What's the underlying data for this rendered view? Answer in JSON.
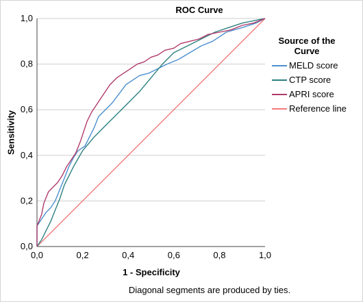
{
  "chart_data": {
    "type": "line",
    "title": "ROC Curve",
    "xlabel": "1 - Specificity",
    "ylabel": "Sensitivity",
    "footnote": "Diagonal segments are produced by ties.",
    "xlim": [
      0,
      1
    ],
    "ylim": [
      0,
      1
    ],
    "xticks": [
      "0,0",
      "0,2",
      "0,4",
      "0,6",
      "0,8",
      "1,0"
    ],
    "yticks": [
      "0,0",
      "0,2",
      "0,4",
      "0,6",
      "0,8",
      "1,0"
    ],
    "grid": "horizontal",
    "legend": {
      "title": "Source of the Curve",
      "position": "right"
    },
    "series": [
      {
        "name": "MELD score",
        "color": "#4a8fd0",
        "points": [
          [
            0,
            0
          ],
          [
            0,
            0.09
          ],
          [
            0.02,
            0.12
          ],
          [
            0.04,
            0.15
          ],
          [
            0.06,
            0.17
          ],
          [
            0.08,
            0.2
          ],
          [
            0.1,
            0.25
          ],
          [
            0.12,
            0.3
          ],
          [
            0.14,
            0.35
          ],
          [
            0.16,
            0.39
          ],
          [
            0.18,
            0.42
          ],
          [
            0.21,
            0.44
          ],
          [
            0.23,
            0.48
          ],
          [
            0.25,
            0.52
          ],
          [
            0.27,
            0.57
          ],
          [
            0.3,
            0.6
          ],
          [
            0.33,
            0.63
          ],
          [
            0.36,
            0.67
          ],
          [
            0.39,
            0.71
          ],
          [
            0.42,
            0.73
          ],
          [
            0.45,
            0.75
          ],
          [
            0.49,
            0.76
          ],
          [
            0.53,
            0.78
          ],
          [
            0.57,
            0.8
          ],
          [
            0.62,
            0.82
          ],
          [
            0.67,
            0.85
          ],
          [
            0.72,
            0.88
          ],
          [
            0.77,
            0.9
          ],
          [
            0.83,
            0.94
          ],
          [
            0.9,
            0.96
          ],
          [
            0.96,
            0.98
          ],
          [
            1,
            1
          ]
        ]
      },
      {
        "name": "CTP score",
        "color": "#2e7f80",
        "points": [
          [
            0,
            0
          ],
          [
            0.02,
            0.03
          ],
          [
            0.04,
            0.07
          ],
          [
            0.06,
            0.11
          ],
          [
            0.08,
            0.16
          ],
          [
            0.1,
            0.21
          ],
          [
            0.12,
            0.27
          ],
          [
            0.14,
            0.31
          ],
          [
            0.16,
            0.35
          ],
          [
            0.2,
            0.42
          ],
          [
            0.25,
            0.48
          ],
          [
            0.3,
            0.53
          ],
          [
            0.35,
            0.58
          ],
          [
            0.4,
            0.63
          ],
          [
            0.45,
            0.68
          ],
          [
            0.5,
            0.74
          ],
          [
            0.55,
            0.8
          ],
          [
            0.6,
            0.85
          ],
          [
            0.66,
            0.88
          ],
          [
            0.72,
            0.91
          ],
          [
            0.78,
            0.94
          ],
          [
            0.84,
            0.96
          ],
          [
            0.9,
            0.98
          ],
          [
            0.95,
            0.99
          ],
          [
            1,
            1
          ]
        ]
      },
      {
        "name": "APRI score",
        "color": "#b03a6a",
        "points": [
          [
            0,
            0
          ],
          [
            0,
            0.09
          ],
          [
            0.02,
            0.14
          ],
          [
            0.03,
            0.19
          ],
          [
            0.05,
            0.24
          ],
          [
            0.07,
            0.26
          ],
          [
            0.09,
            0.28
          ],
          [
            0.11,
            0.31
          ],
          [
            0.13,
            0.35
          ],
          [
            0.15,
            0.38
          ],
          [
            0.17,
            0.41
          ],
          [
            0.19,
            0.46
          ],
          [
            0.21,
            0.52
          ],
          [
            0.22,
            0.55
          ],
          [
            0.24,
            0.59
          ],
          [
            0.26,
            0.62
          ],
          [
            0.28,
            0.65
          ],
          [
            0.3,
            0.68
          ],
          [
            0.32,
            0.71
          ],
          [
            0.35,
            0.74
          ],
          [
            0.38,
            0.76
          ],
          [
            0.41,
            0.78
          ],
          [
            0.44,
            0.8
          ],
          [
            0.47,
            0.81
          ],
          [
            0.5,
            0.83
          ],
          [
            0.53,
            0.84
          ],
          [
            0.56,
            0.86
          ],
          [
            0.6,
            0.87
          ],
          [
            0.63,
            0.89
          ],
          [
            0.67,
            0.9
          ],
          [
            0.71,
            0.91
          ],
          [
            0.75,
            0.93
          ],
          [
            0.8,
            0.94
          ],
          [
            0.85,
            0.95
          ],
          [
            0.9,
            0.97
          ],
          [
            0.95,
            0.98
          ],
          [
            1,
            1
          ]
        ]
      },
      {
        "name": "Reference line",
        "color": "#f27a7a",
        "points": [
          [
            0,
            0
          ],
          [
            1,
            1
          ]
        ]
      }
    ]
  }
}
